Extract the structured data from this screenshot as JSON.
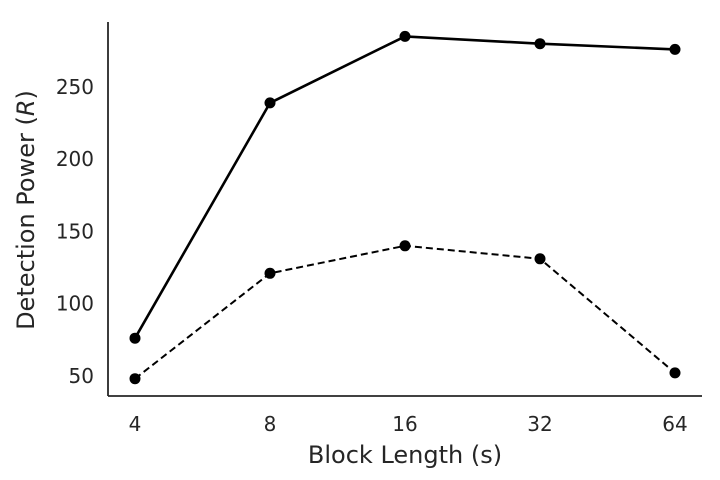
{
  "chart_data": {
    "type": "line",
    "title": "",
    "xlabel": "Block Length (s)",
    "ylabel_parts": {
      "prefix": "Detection Power (",
      "symbol": "R",
      "suffix": ")"
    },
    "x_scale": "log2",
    "categories": [
      "4",
      "8",
      "16",
      "32",
      "64"
    ],
    "x": [
      4,
      8,
      16,
      32,
      64
    ],
    "y_ticks": [
      "50",
      "100",
      "150",
      "200",
      "250"
    ],
    "ylim": [
      36,
      295
    ],
    "grid": false,
    "legend": "none",
    "series": [
      {
        "style": "solid",
        "color": "#000000",
        "values": [
          76,
          239,
          285,
          280,
          276
        ]
      },
      {
        "style": "dashed",
        "color": "#000000",
        "values": [
          48,
          121,
          140,
          131,
          52
        ]
      }
    ]
  }
}
